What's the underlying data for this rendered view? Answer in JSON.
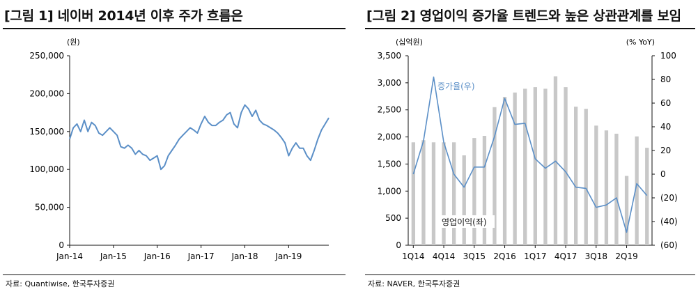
{
  "left": {
    "title": "[그림 1] 네이버 2014년 이후 주가 흐름은",
    "source": "자료: Quantiwise, 한국투자증권"
  },
  "right": {
    "title": "[그림 2] 영업이익 증가율 트렌드와 높은 상관관계를 보임",
    "source": "자료: NAVER, 한국투자증권"
  },
  "colors": {
    "line": "#5b8fc7",
    "bar": "#c8c8c8",
    "axis": "#111111",
    "label_line": "#5b8fc7"
  },
  "chart_data": [
    {
      "type": "line",
      "title": "[그림 1] 네이버 2014년 이후 주가 흐름은",
      "ylabel": "(원)",
      "ylim": [
        0,
        250000
      ],
      "yticks": [
        0,
        50000,
        100000,
        150000,
        200000,
        250000
      ],
      "ytick_labels": [
        "0",
        "50,000",
        "100,000",
        "150,000",
        "200,000",
        "250,000"
      ],
      "xlim": [
        "2014-01",
        "2019-12"
      ],
      "xticks": [
        "Jan-14",
        "Jan-15",
        "Jan-16",
        "Jan-17",
        "Jan-18",
        "Jan-19"
      ],
      "series": [
        {
          "x": [
            "2014-01",
            "2014-02",
            "2014-03",
            "2014-04",
            "2014-05",
            "2014-06",
            "2014-07",
            "2014-08",
            "2014-09",
            "2014-10",
            "2014-11",
            "2014-12",
            "2015-01",
            "2015-02",
            "2015-03",
            "2015-04",
            "2015-05",
            "2015-06",
            "2015-07",
            "2015-08",
            "2015-09",
            "2015-10",
            "2015-11",
            "2015-12",
            "2016-01",
            "2016-02",
            "2016-03",
            "2016-04",
            "2016-05",
            "2016-06",
            "2016-07",
            "2016-08",
            "2016-09",
            "2016-10",
            "2016-11",
            "2016-12",
            "2017-01",
            "2017-02",
            "2017-03",
            "2017-04",
            "2017-05",
            "2017-06",
            "2017-07",
            "2017-08",
            "2017-09",
            "2017-10",
            "2017-11",
            "2017-12",
            "2018-01",
            "2018-02",
            "2018-03",
            "2018-04",
            "2018-05",
            "2018-06",
            "2018-07",
            "2018-08",
            "2018-09",
            "2018-10",
            "2018-11",
            "2018-12",
            "2019-01",
            "2019-02",
            "2019-03",
            "2019-04",
            "2019-05",
            "2019-06",
            "2019-07",
            "2019-08",
            "2019-09",
            "2019-10",
            "2019-11",
            "2019-12"
          ],
          "values": [
            140000,
            155000,
            160000,
            150000,
            165000,
            150000,
            162000,
            158000,
            148000,
            145000,
            150000,
            155000,
            150000,
            145000,
            130000,
            128000,
            132000,
            128000,
            120000,
            125000,
            120000,
            118000,
            112000,
            115000,
            118000,
            100000,
            105000,
            118000,
            125000,
            132000,
            140000,
            145000,
            150000,
            155000,
            152000,
            148000,
            160000,
            170000,
            162000,
            158000,
            158000,
            162000,
            165000,
            172000,
            175000,
            160000,
            155000,
            175000,
            185000,
            180000,
            170000,
            178000,
            165000,
            160000,
            158000,
            155000,
            152000,
            148000,
            142000,
            135000,
            118000,
            128000,
            135000,
            128000,
            128000,
            118000,
            112000,
            125000,
            140000,
            152000,
            160000,
            168000
          ]
        }
      ]
    },
    {
      "type": "bar",
      "title": "[그림 2] 영업이익 증가율 트렌드와 높은 상관관계를 보임",
      "ylabel": "(십억원)",
      "ylabel_right": "(% YoY)",
      "ylim": [
        0,
        3500
      ],
      "yticks": [
        0,
        500,
        1000,
        1500,
        2000,
        2500,
        3000,
        3500
      ],
      "ytick_labels": [
        "0",
        "500",
        "1,000",
        "1,500",
        "2,000",
        "2,500",
        "3,000",
        "3,500"
      ],
      "ylim_right": [
        -60,
        100
      ],
      "yticks_right": [
        -60,
        -40,
        -20,
        0,
        20,
        40,
        60,
        80,
        100
      ],
      "ytick_labels_right": [
        "(60)",
        "(40)",
        "(20)",
        "0",
        "20",
        "40",
        "60",
        "80",
        "100"
      ],
      "categories": [
        "1Q14",
        "2Q14",
        "3Q14",
        "4Q14",
        "1Q15",
        "2Q15",
        "3Q15",
        "4Q15",
        "1Q16",
        "2Q16",
        "3Q16",
        "4Q16",
        "1Q17",
        "2Q17",
        "3Q17",
        "4Q17",
        "1Q18",
        "2Q18",
        "3Q18",
        "4Q18",
        "1Q19",
        "2Q19",
        "3Q19",
        "4Q19"
      ],
      "xtick_labels": [
        "1Q14",
        "4Q14",
        "3Q15",
        "2Q16",
        "1Q17",
        "4Q17",
        "3Q18",
        "2Q19"
      ],
      "series": [
        {
          "name": "영업이익(좌)",
          "axis": "left",
          "type": "bar",
          "values": [
            1900,
            1940,
            1900,
            1900,
            1900,
            1660,
            1980,
            2020,
            2550,
            2740,
            2820,
            2890,
            2920,
            2890,
            3120,
            2920,
            2560,
            2520,
            2210,
            2120,
            2060,
            1280,
            2010,
            1800
          ]
        },
        {
          "name": "증가율(우)",
          "axis": "right",
          "type": "line",
          "values": [
            0,
            28,
            82,
            27,
            0,
            -11,
            6,
            6,
            32,
            64,
            42,
            43,
            13,
            5,
            11,
            2,
            -11,
            -12,
            -28,
            -26,
            -20,
            -49,
            -8,
            -18
          ]
        }
      ]
    }
  ]
}
